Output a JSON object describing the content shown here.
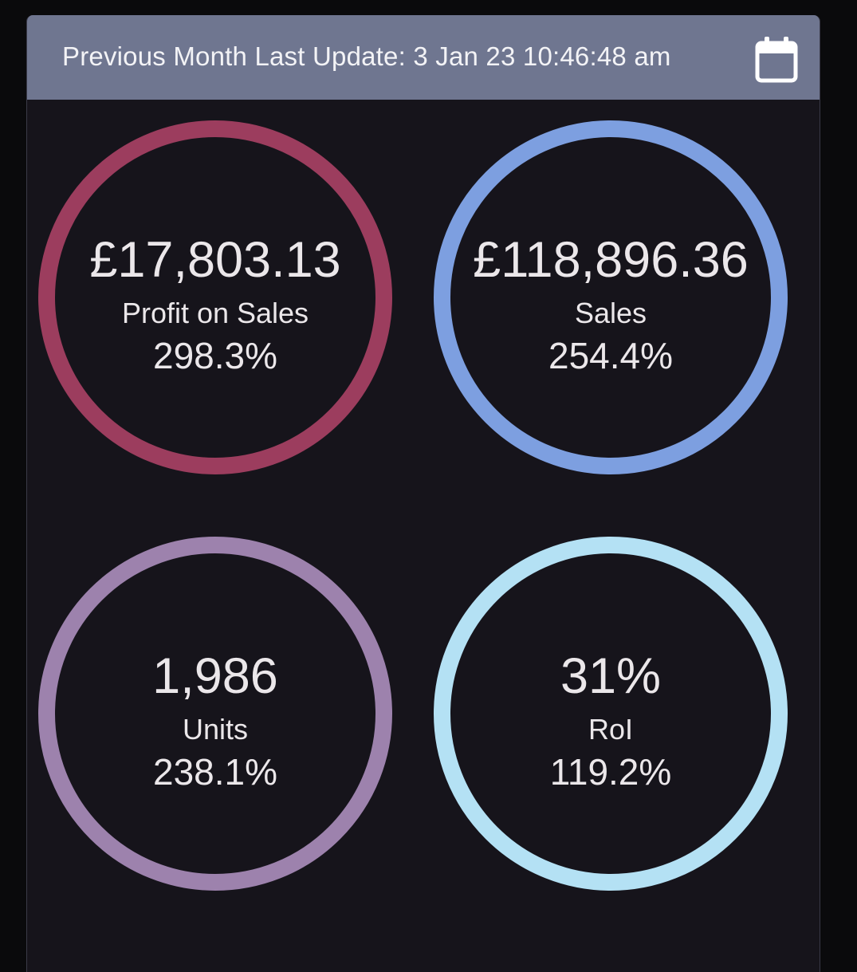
{
  "header": {
    "title": "Previous Month Last Update: 3 Jan 23 10:46:48 am",
    "calendar_icon": "calendar-icon"
  },
  "kpis": [
    {
      "id": "profit",
      "value": "£17,803.13",
      "label": "Profit on Sales",
      "change": "298.3%",
      "ring_color": "#9c3d5e"
    },
    {
      "id": "sales",
      "value": "£118,896.36",
      "label": "Sales",
      "change": "254.4%",
      "ring_color": "#7d9fe0"
    },
    {
      "id": "units",
      "value": "1,986",
      "label": "Units",
      "change": "238.1%",
      "ring_color": "#9d82ad"
    },
    {
      "id": "roi",
      "value": "31%",
      "label": "RoI",
      "change": "119.2%",
      "ring_color": "#b4e1f4"
    }
  ],
  "colors": {
    "header_bg": "#6f7690",
    "card_bg": "#16141b",
    "text": "#ebe7ea"
  }
}
